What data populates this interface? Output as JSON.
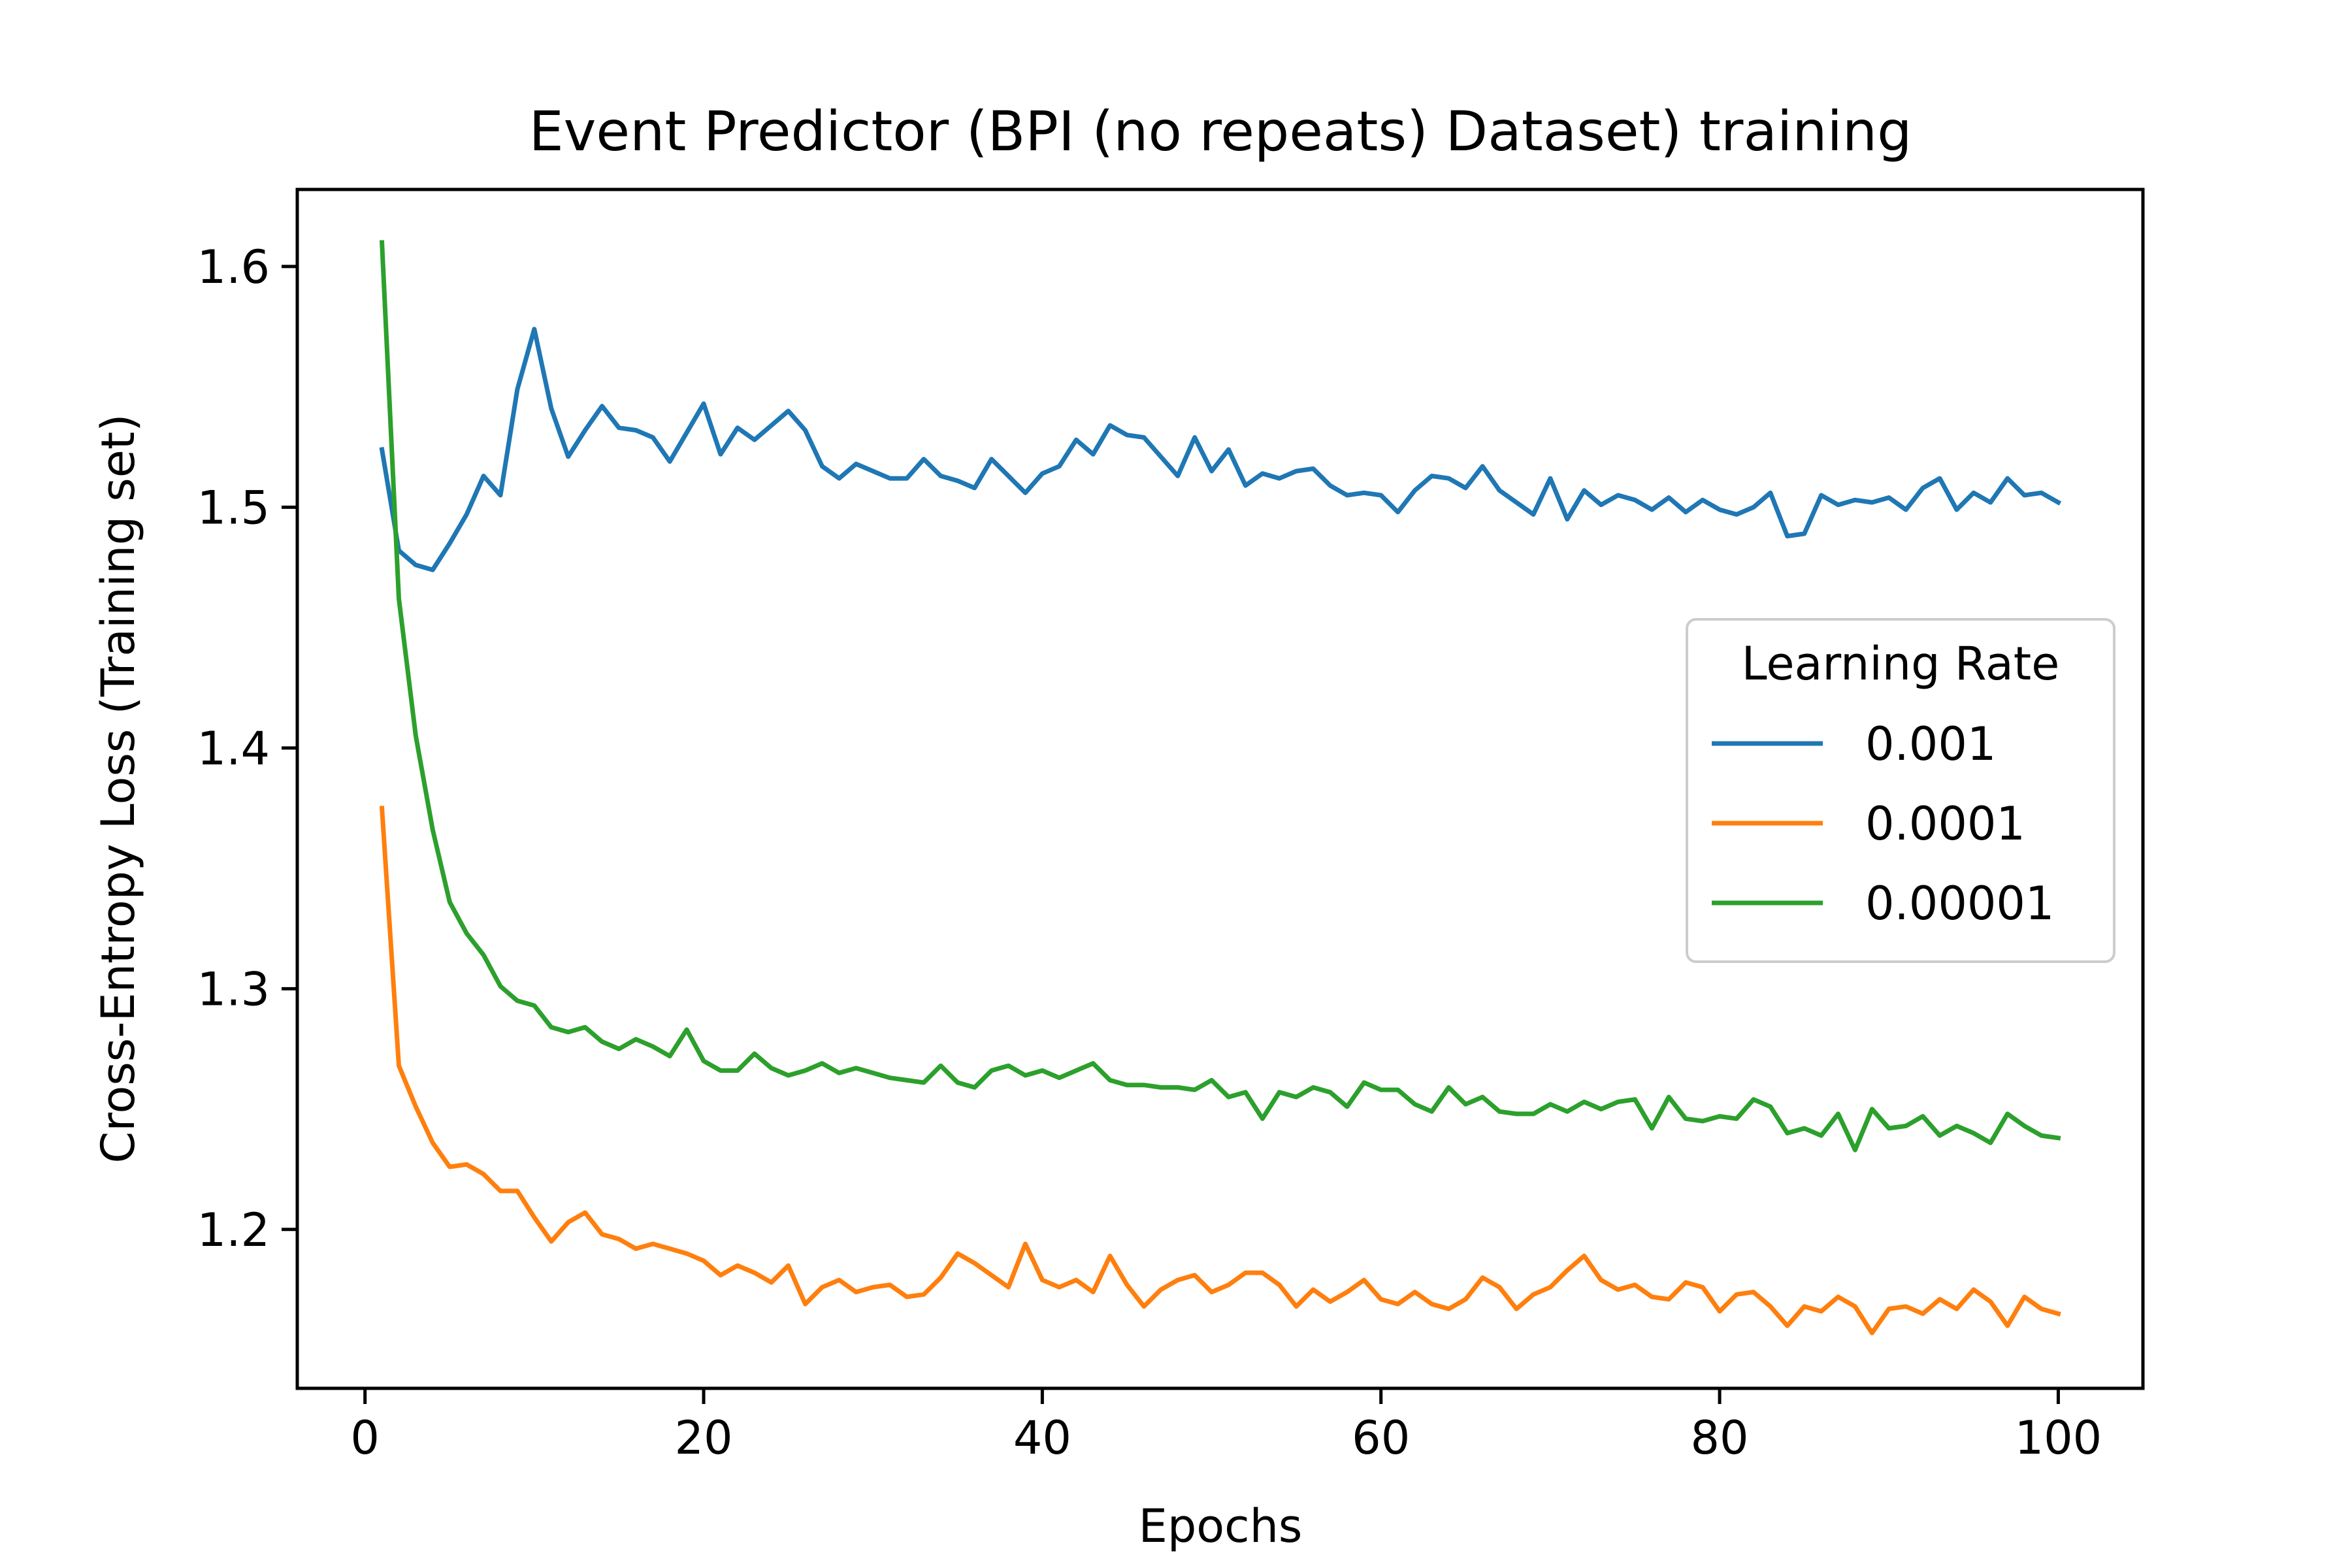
{
  "chart_data": {
    "type": "line",
    "title": "Event Predictor (BPI (no repeats) Dataset) training",
    "xlabel": "Epochs",
    "ylabel": "Cross-Entropy Loss (Training set)",
    "xlim": [
      -4,
      105
    ],
    "ylim": [
      1.134,
      1.632
    ],
    "xticks": [
      0,
      20,
      40,
      60,
      80,
      100
    ],
    "yticks": [
      1.2,
      1.3,
      1.4,
      1.5,
      1.6
    ],
    "ytick_labels": [
      "1.2",
      "1.3",
      "1.4",
      "1.5",
      "1.6"
    ],
    "grid": false,
    "legend": {
      "title": "Learning Rate",
      "placement": "center-right"
    },
    "x": [
      1,
      2,
      3,
      4,
      5,
      6,
      7,
      8,
      9,
      10,
      11,
      12,
      13,
      14,
      15,
      16,
      17,
      18,
      19,
      20,
      21,
      22,
      23,
      24,
      25,
      26,
      27,
      28,
      29,
      30,
      31,
      32,
      33,
      34,
      35,
      36,
      37,
      38,
      39,
      40,
      41,
      42,
      43,
      44,
      45,
      46,
      47,
      48,
      49,
      50,
      51,
      52,
      53,
      54,
      55,
      56,
      57,
      58,
      59,
      60,
      61,
      62,
      63,
      64,
      65,
      66,
      67,
      68,
      69,
      70,
      71,
      72,
      73,
      74,
      75,
      76,
      77,
      78,
      79,
      80,
      81,
      82,
      83,
      84,
      85,
      86,
      87,
      88,
      89,
      90,
      91,
      92,
      93,
      94,
      95,
      96,
      97,
      98,
      99,
      100
    ],
    "series": [
      {
        "name": "0.001",
        "color": "#1f77b4",
        "values": [
          1.524,
          1.482,
          1.476,
          1.474,
          1.485,
          1.497,
          1.513,
          1.505,
          1.549,
          1.574,
          1.541,
          1.521,
          1.532,
          1.542,
          1.533,
          1.532,
          1.529,
          1.519,
          1.531,
          1.543,
          1.522,
          1.533,
          1.528,
          1.534,
          1.54,
          1.532,
          1.517,
          1.512,
          1.518,
          1.515,
          1.512,
          1.512,
          1.52,
          1.513,
          1.511,
          1.508,
          1.52,
          1.513,
          1.506,
          1.514,
          1.517,
          1.528,
          1.522,
          1.534,
          1.53,
          1.529,
          1.521,
          1.513,
          1.529,
          1.515,
          1.524,
          1.509,
          1.514,
          1.512,
          1.515,
          1.516,
          1.509,
          1.505,
          1.506,
          1.505,
          1.498,
          1.507,
          1.513,
          1.512,
          1.508,
          1.517,
          1.507,
          1.502,
          1.497,
          1.512,
          1.495,
          1.507,
          1.501,
          1.505,
          1.503,
          1.499,
          1.504,
          1.498,
          1.503,
          1.499,
          1.497,
          1.5,
          1.506,
          1.488,
          1.489,
          1.505,
          1.501,
          1.503,
          1.502,
          1.504,
          1.499,
          1.508,
          1.512,
          1.499,
          1.506,
          1.502,
          1.512,
          1.505,
          1.506,
          1.502
        ]
      },
      {
        "name": "0.0001",
        "color": "#ff7f0e",
        "values": [
          1.375,
          1.268,
          1.251,
          1.236,
          1.226,
          1.227,
          1.223,
          1.216,
          1.216,
          1.205,
          1.195,
          1.203,
          1.207,
          1.198,
          1.196,
          1.192,
          1.194,
          1.192,
          1.19,
          1.187,
          1.181,
          1.185,
          1.182,
          1.178,
          1.185,
          1.169,
          1.176,
          1.179,
          1.174,
          1.176,
          1.177,
          1.172,
          1.173,
          1.18,
          1.19,
          1.186,
          1.181,
          1.176,
          1.194,
          1.179,
          1.176,
          1.179,
          1.174,
          1.189,
          1.177,
          1.168,
          1.175,
          1.179,
          1.181,
          1.174,
          1.177,
          1.182,
          1.182,
          1.177,
          1.168,
          1.175,
          1.17,
          1.174,
          1.179,
          1.171,
          1.169,
          1.174,
          1.169,
          1.167,
          1.171,
          1.18,
          1.176,
          1.167,
          1.173,
          1.176,
          1.183,
          1.189,
          1.179,
          1.175,
          1.177,
          1.172,
          1.171,
          1.178,
          1.176,
          1.166,
          1.173,
          1.174,
          1.168,
          1.16,
          1.168,
          1.166,
          1.172,
          1.168,
          1.157,
          1.167,
          1.168,
          1.165,
          1.171,
          1.167,
          1.175,
          1.17,
          1.16,
          1.172,
          1.167,
          1.165
        ]
      },
      {
        "name": "0.00001",
        "color": "#2ca02c",
        "values": [
          1.61,
          1.462,
          1.405,
          1.366,
          1.336,
          1.323,
          1.314,
          1.301,
          1.295,
          1.293,
          1.284,
          1.282,
          1.284,
          1.278,
          1.275,
          1.279,
          1.276,
          1.272,
          1.283,
          1.27,
          1.266,
          1.266,
          1.273,
          1.267,
          1.264,
          1.266,
          1.269,
          1.265,
          1.267,
          1.265,
          1.263,
          1.262,
          1.261,
          1.268,
          1.261,
          1.259,
          1.266,
          1.268,
          1.264,
          1.266,
          1.263,
          1.266,
          1.269,
          1.262,
          1.26,
          1.26,
          1.259,
          1.259,
          1.258,
          1.262,
          1.255,
          1.257,
          1.246,
          1.257,
          1.255,
          1.259,
          1.257,
          1.251,
          1.261,
          1.258,
          1.258,
          1.252,
          1.249,
          1.259,
          1.252,
          1.255,
          1.249,
          1.248,
          1.248,
          1.252,
          1.249,
          1.253,
          1.25,
          1.253,
          1.254,
          1.242,
          1.255,
          1.246,
          1.245,
          1.247,
          1.246,
          1.254,
          1.251,
          1.24,
          1.242,
          1.239,
          1.248,
          1.233,
          1.25,
          1.242,
          1.243,
          1.247,
          1.239,
          1.243,
          1.24,
          1.236,
          1.248,
          1.243,
          1.239,
          1.238
        ]
      }
    ]
  }
}
